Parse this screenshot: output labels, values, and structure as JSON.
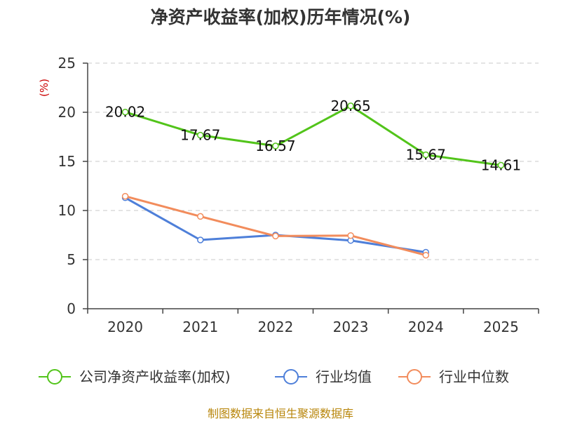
{
  "chart_data": {
    "type": "line",
    "title": "净资产收益率(加权)历年情况(%)",
    "xlabel": "",
    "ylabel": "(%)",
    "categories": [
      "2020",
      "2021",
      "2022",
      "2023",
      "2024",
      "2025"
    ],
    "ylim": [
      0,
      25
    ],
    "yticks": [
      0,
      5,
      10,
      15,
      20,
      25
    ],
    "grid": true,
    "legend_position": "bottom",
    "series": [
      {
        "name": "公司净资产收益率(加权)",
        "color": "#52c41a",
        "values": [
          20.02,
          17.67,
          16.57,
          20.65,
          15.67,
          14.61
        ],
        "labels": [
          "20.02",
          "17.67",
          "16.57",
          "20.65",
          "15.67",
          "14.61"
        ]
      },
      {
        "name": "行业均值",
        "color": "#4e7fd9",
        "values": [
          11.3,
          7.0,
          7.5,
          6.95,
          5.75,
          null
        ]
      },
      {
        "name": "行业中位数",
        "color": "#f28c5c",
        "values": [
          11.45,
          9.4,
          7.4,
          7.45,
          5.45,
          null
        ]
      }
    ],
    "source": "制图数据来自恒生聚源数据库"
  }
}
